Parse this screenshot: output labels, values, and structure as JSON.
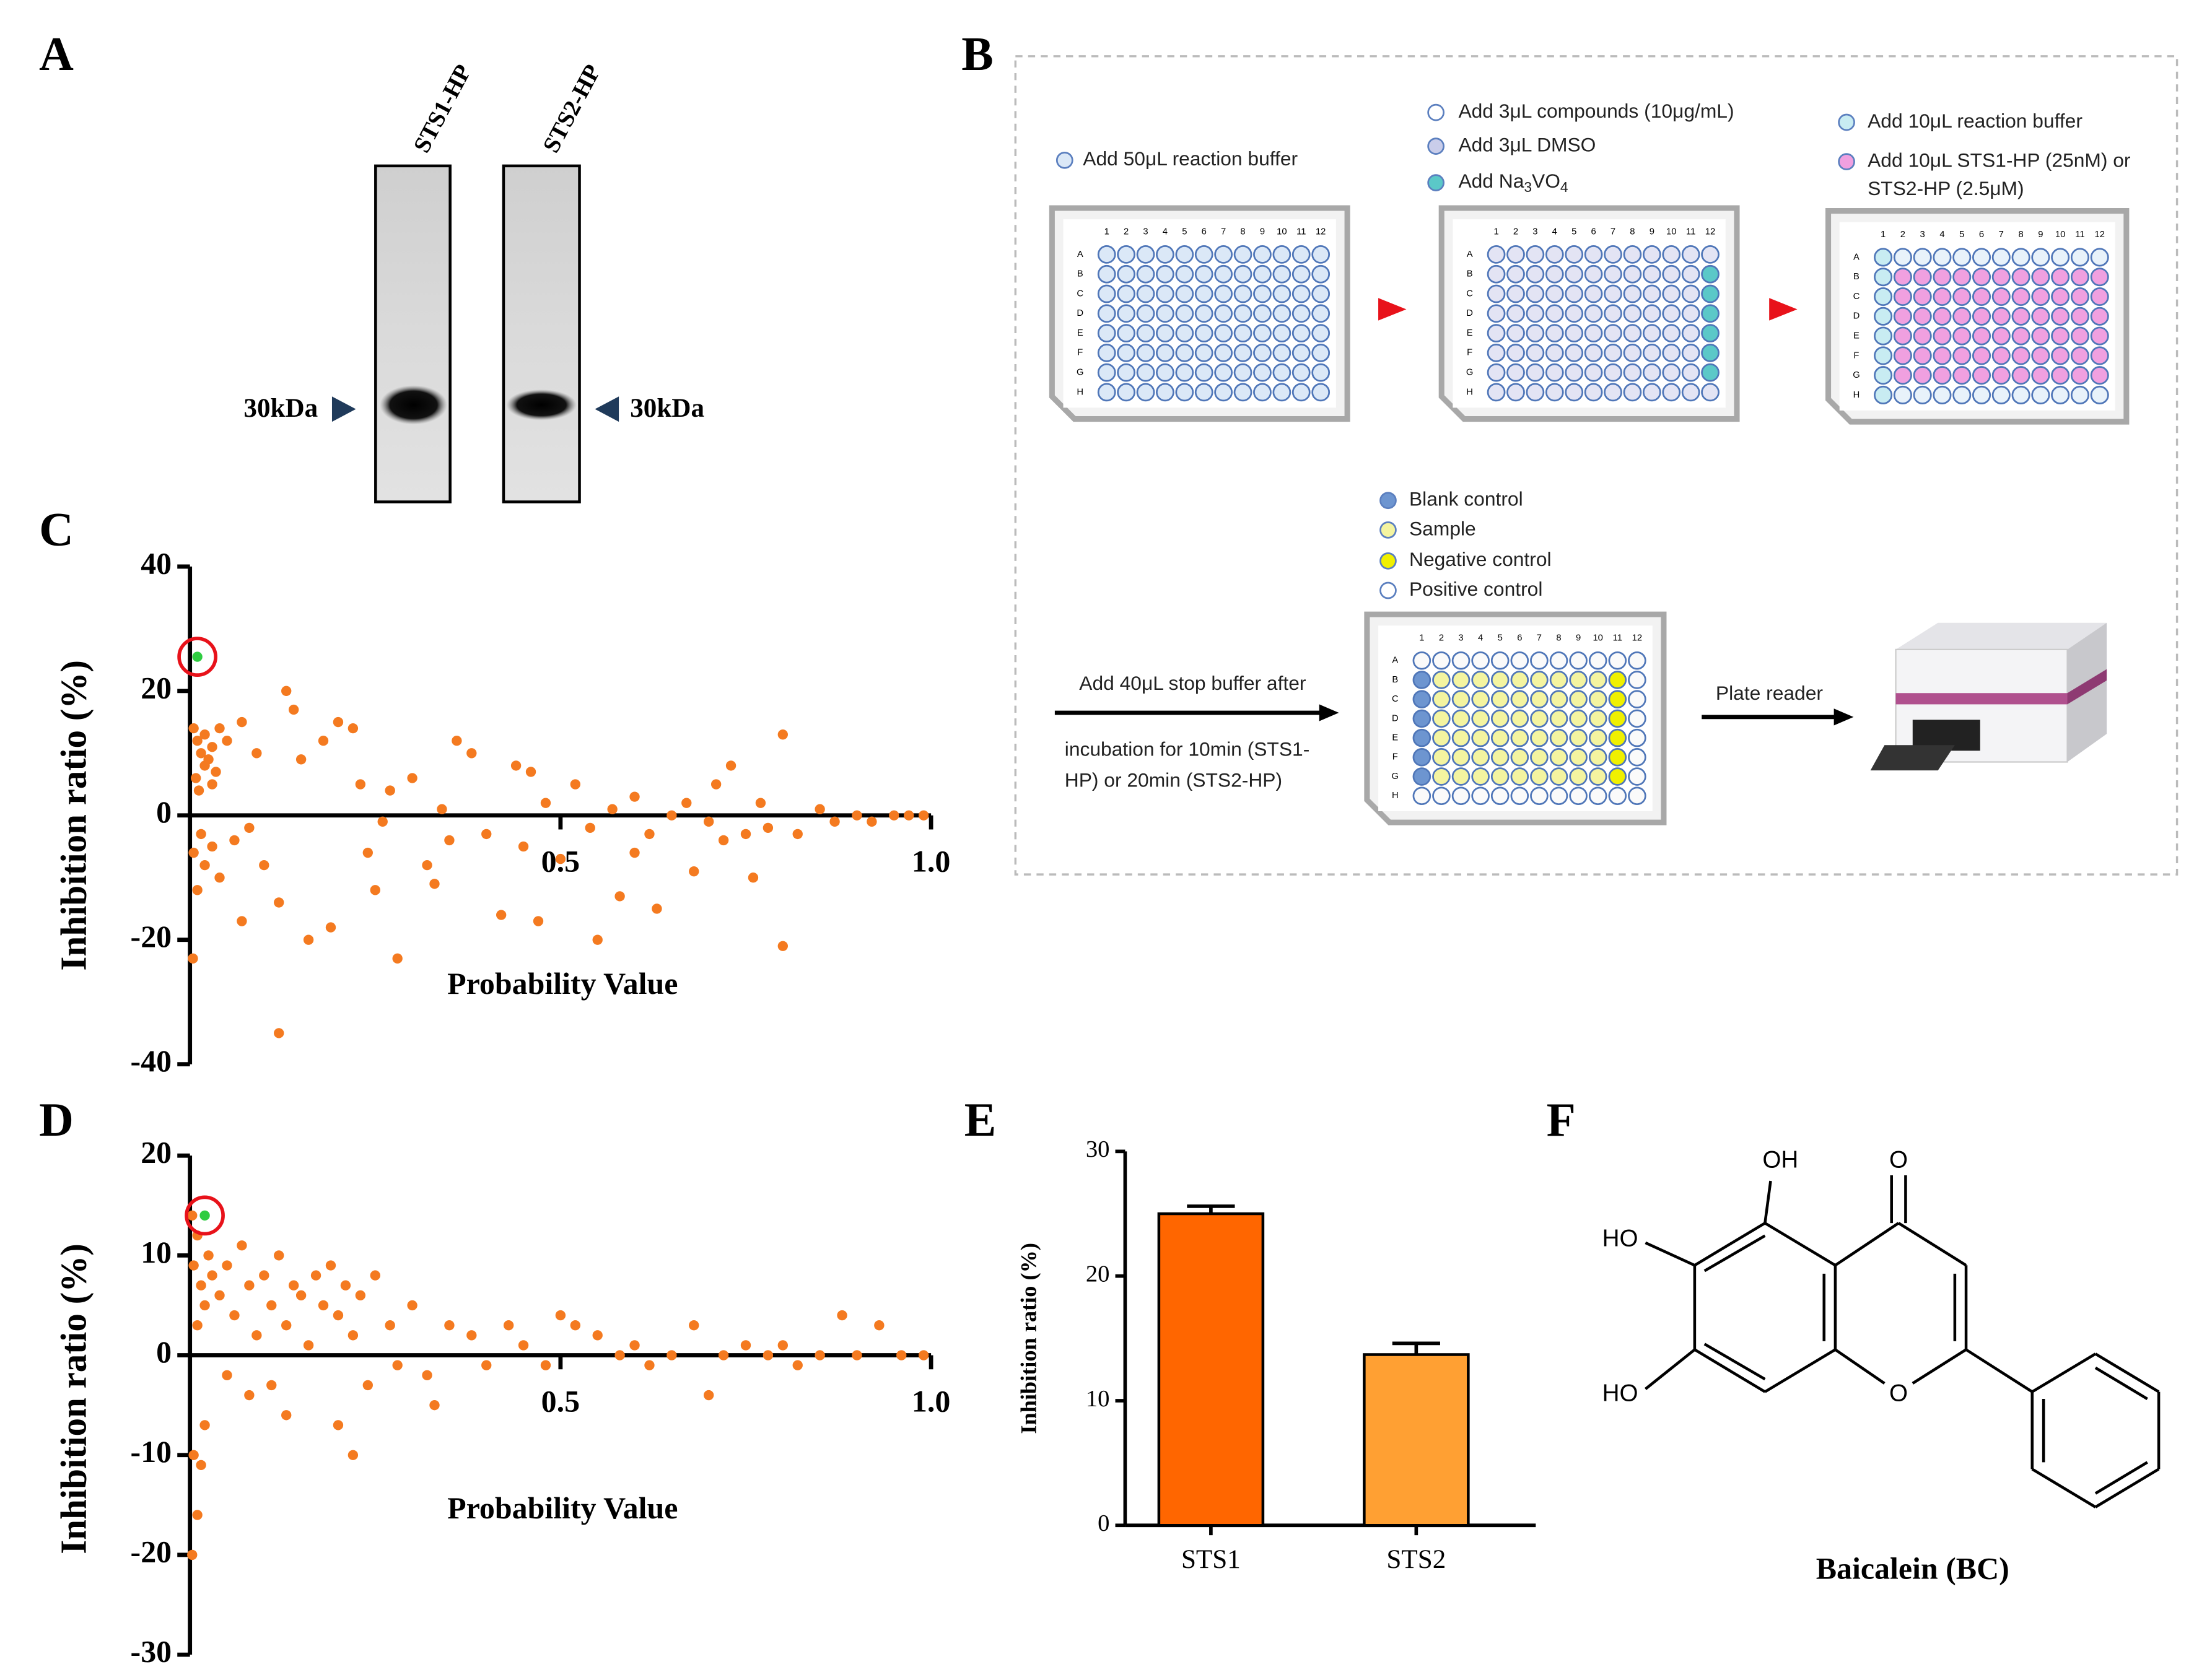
{
  "panels": [
    "A",
    "B",
    "C",
    "D",
    "E",
    "F"
  ],
  "gel": {
    "lanes": [
      "STS1-HP",
      "STS2-HP"
    ],
    "markers": [
      "30kDa",
      "30kDa"
    ]
  },
  "workflow": {
    "step1": "Add 50μL reaction buffer",
    "step2": [
      "Add 3μL compounds (10μg/mL)",
      "Add 3μL DMSO",
      [
        "Add Na",
        "3",
        "VO",
        "4"
      ]
    ],
    "step3": [
      "Add 10μL reaction buffer",
      "Add 10μL STS1-HP (25nM) or",
      "STS2-HP (2.5μM)"
    ],
    "legend": [
      "Blank control",
      "Sample",
      "Negative control",
      "Positive control"
    ],
    "stop": [
      "Add 40μL stop buffer after",
      "incubation for 10min (STS1-",
      "HP) or 20min (STS2-HP)"
    ],
    "reader": "Plate reader",
    "rows": [
      "A",
      "B",
      "C",
      "D",
      "E",
      "F",
      "G",
      "H"
    ],
    "cols": [
      1,
      2,
      3,
      4,
      5,
      6,
      7,
      8,
      9,
      10,
      11,
      12
    ]
  },
  "structure": {
    "labels": [
      "OH",
      "O",
      "HO",
      "HO",
      "O"
    ],
    "name": "Baicalein (BC)"
  },
  "chart_data": [
    {
      "type": "scatter",
      "xlabel": "Probability Value",
      "ylabel": "Inhibition ratio (%)",
      "xlim": [
        0,
        1
      ],
      "ylim": [
        -40,
        40
      ],
      "xticks": [
        0.5,
        {
          "value": 1,
          "label": "1.0"
        }
      ],
      "yticks": [
        -40,
        -20,
        0,
        20,
        40
      ],
      "series": [
        {
          "color": "#f47a20",
          "x": [
            0.005,
            0.01,
            0.015,
            0.02,
            0.008,
            0.012,
            0.02,
            0.03,
            0.025,
            0.035,
            0.04,
            0.05,
            0.03,
            0.015,
            0.005,
            0.01,
            0.02,
            0.004,
            0.03,
            0.04,
            0.06,
            0.07,
            0.08,
            0.07,
            0.09,
            0.1,
            0.12,
            0.13,
            0.14,
            0.15,
            0.16,
            0.18,
            0.2,
            0.19,
            0.22,
            0.23,
            0.24,
            0.25,
            0.26,
            0.28,
            0.3,
            0.32,
            0.34,
            0.35,
            0.36,
            0.38,
            0.4,
            0.42,
            0.44,
            0.45,
            0.47,
            0.48,
            0.5,
            0.52,
            0.54,
            0.55,
            0.57,
            0.6,
            0.62,
            0.63,
            0.65,
            0.67,
            0.68,
            0.7,
            0.72,
            0.73,
            0.75,
            0.77,
            0.78,
            0.8,
            0.8,
            0.82,
            0.85,
            0.87,
            0.9,
            0.92,
            0.95,
            0.97,
            0.99,
            0.12,
            0.27,
            0.33,
            0.46,
            0.58,
            0.71,
            0.76,
            0.6
          ],
          "values": [
            14,
            12,
            10,
            8,
            6,
            4,
            13,
            11,
            9,
            7,
            14,
            12,
            5,
            -3,
            -6,
            -12,
            -8,
            -23,
            -5,
            -10,
            -4,
            -17,
            -2,
            15,
            10,
            -8,
            -14,
            20,
            17,
            9,
            -20,
            12,
            15,
            -18,
            14,
            5,
            -6,
            -12,
            -1,
            -23,
            6,
            -8,
            1,
            -4,
            12,
            10,
            -3,
            -16,
            8,
            -5,
            -17,
            2,
            -7,
            5,
            -2,
            -20,
            1,
            3,
            -3,
            -15,
            0,
            2,
            -9,
            -1,
            -4,
            8,
            -3,
            2,
            -2,
            13,
            -21,
            -3,
            1,
            -1,
            0,
            -1,
            0,
            0,
            0,
            -35,
            4,
            -11,
            7,
            -13,
            5,
            -10,
            -6
          ]
        },
        {
          "color": "#2ecc40",
          "x": [
            0.01
          ],
          "values": [
            25.5
          ]
        }
      ]
    },
    {
      "type": "scatter",
      "xlabel": "Probability Value",
      "ylabel": "Inhibition ratio (%)",
      "xlim": [
        0,
        1
      ],
      "ylim": [
        -30,
        20
      ],
      "xticks": [
        0.5,
        {
          "value": 1,
          "label": "1.0"
        }
      ],
      "yticks": [
        -30,
        -20,
        -10,
        0,
        10,
        20
      ],
      "series": [
        {
          "color": "#f47a20",
          "x": [
            0.003,
            0.01,
            0.005,
            0.015,
            0.02,
            0.01,
            0.025,
            0.03,
            0.04,
            0.05,
            0.06,
            0.07,
            0.08,
            0.09,
            0.1,
            0.11,
            0.12,
            0.13,
            0.14,
            0.15,
            0.16,
            0.17,
            0.18,
            0.19,
            0.2,
            0.21,
            0.22,
            0.23,
            0.25,
            0.27,
            0.28,
            0.3,
            0.32,
            0.35,
            0.38,
            0.4,
            0.43,
            0.45,
            0.48,
            0.5,
            0.52,
            0.55,
            0.58,
            0.6,
            0.62,
            0.65,
            0.68,
            0.7,
            0.72,
            0.75,
            0.78,
            0.8,
            0.82,
            0.85,
            0.88,
            0.9,
            0.93,
            0.96,
            0.99,
            0.005,
            0.01,
            0.003,
            0.02,
            0.015,
            0.05,
            0.08,
            0.11,
            0.2,
            0.22,
            0.24,
            0.13,
            0.33
          ],
          "values": [
            14,
            12,
            9,
            7,
            5,
            3,
            10,
            8,
            6,
            9,
            4,
            11,
            7,
            2,
            8,
            5,
            10,
            3,
            7,
            6,
            1,
            8,
            5,
            9,
            4,
            7,
            2,
            6,
            8,
            3,
            -1,
            5,
            -2,
            3,
            2,
            -1,
            3,
            1,
            -1,
            4,
            3,
            2,
            0,
            1,
            -1,
            0,
            3,
            -4,
            0,
            1,
            0,
            1,
            -1,
            0,
            4,
            0,
            3,
            0,
            0,
            -10,
            -16,
            -20,
            -7,
            -11,
            -2,
            -4,
            -3,
            -7,
            -10,
            -3,
            -6,
            -5
          ]
        },
        {
          "color": "#2ecc40",
          "x": [
            0.02
          ],
          "values": [
            14
          ]
        }
      ]
    },
    {
      "type": "bar",
      "ylabel": "Inhibition ratio (%)",
      "categories": [
        "STS1",
        "STS2"
      ],
      "values": [
        25,
        13.7
      ],
      "errors": [
        0.6,
        0.9
      ],
      "colors": [
        "#ff6600",
        "#ffa033"
      ],
      "ylim": [
        0,
        30
      ],
      "yticks": [
        0,
        10,
        20,
        30
      ]
    }
  ]
}
